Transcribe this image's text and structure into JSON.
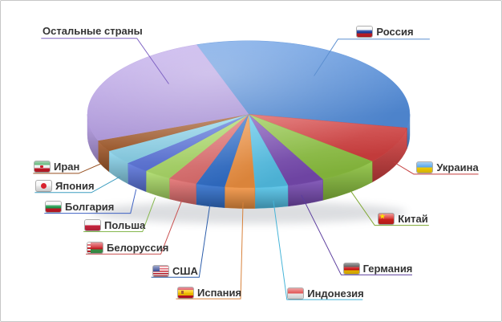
{
  "window": {
    "background_color": "#ffffff",
    "border_color": "#c6c6c6"
  },
  "chart_data": {
    "type": "pie",
    "style": "3d",
    "title": "",
    "legend_position": "callout-labels-around-pie",
    "values_shown_on_chart": false,
    "unit": "share, % (estimated from slice angles)",
    "start_angle_deg": 341.2,
    "slices": [
      {
        "key": "russia",
        "label": "Россия",
        "value": 33.2,
        "color": "#5591e2",
        "line_color": "#5c8fd0",
        "flag": "russia"
      },
      {
        "key": "ukraine",
        "label": "Украина",
        "value": 8.1,
        "color": "#d74242",
        "line_color": "#c43c3c",
        "flag": "ukraine"
      },
      {
        "key": "china",
        "label": "Китай",
        "value": 6.3,
        "color": "#8ec440",
        "line_color": "#7fa832",
        "flag": "china"
      },
      {
        "key": "germany",
        "label": "Германия",
        "value": 3.7,
        "color": "#7a4cb4",
        "line_color": "#5c3d9e",
        "flag": "germany"
      },
      {
        "key": "indonesia",
        "label": "Индонезия",
        "value": 3.3,
        "color": "#54c4ea",
        "line_color": "#45b4d8",
        "flag": "indonesia"
      },
      {
        "key": "spain",
        "label": "Испания",
        "value": 3.0,
        "color": "#f29342",
        "line_color": "#d8813a",
        "flag": "spain"
      },
      {
        "key": "usa",
        "label": "США",
        "value": 2.9,
        "color": "#3372cf",
        "line_color": "#2a5caa",
        "flag": "usa"
      },
      {
        "key": "belarus",
        "label": "Белоруссия",
        "value": 2.9,
        "color": "#e57272",
        "line_color": "#c95050",
        "flag": "belarus"
      },
      {
        "key": "poland",
        "label": "Польша",
        "value": 2.8,
        "color": "#aede6a",
        "line_color": "#86b84e",
        "flag": "poland"
      },
      {
        "key": "bulgaria",
        "label": "Болгария",
        "value": 2.5,
        "color": "#5e78e0",
        "line_color": "#3f62c4",
        "flag": "bulgaria"
      },
      {
        "key": "japan",
        "label": "Япония",
        "value": 3.2,
        "color": "#8ed8f0",
        "line_color": "#3e9ec0",
        "flag": "japan"
      },
      {
        "key": "iran",
        "label": "Иран",
        "value": 2.5,
        "color": "#a85e2e",
        "line_color": "#964e1e",
        "flag": "iran"
      },
      {
        "key": "others",
        "label": "Остальные страны",
        "value": 25.6,
        "color": "#bba2ec",
        "line_color": "#7e62c2",
        "flag": null
      }
    ]
  }
}
